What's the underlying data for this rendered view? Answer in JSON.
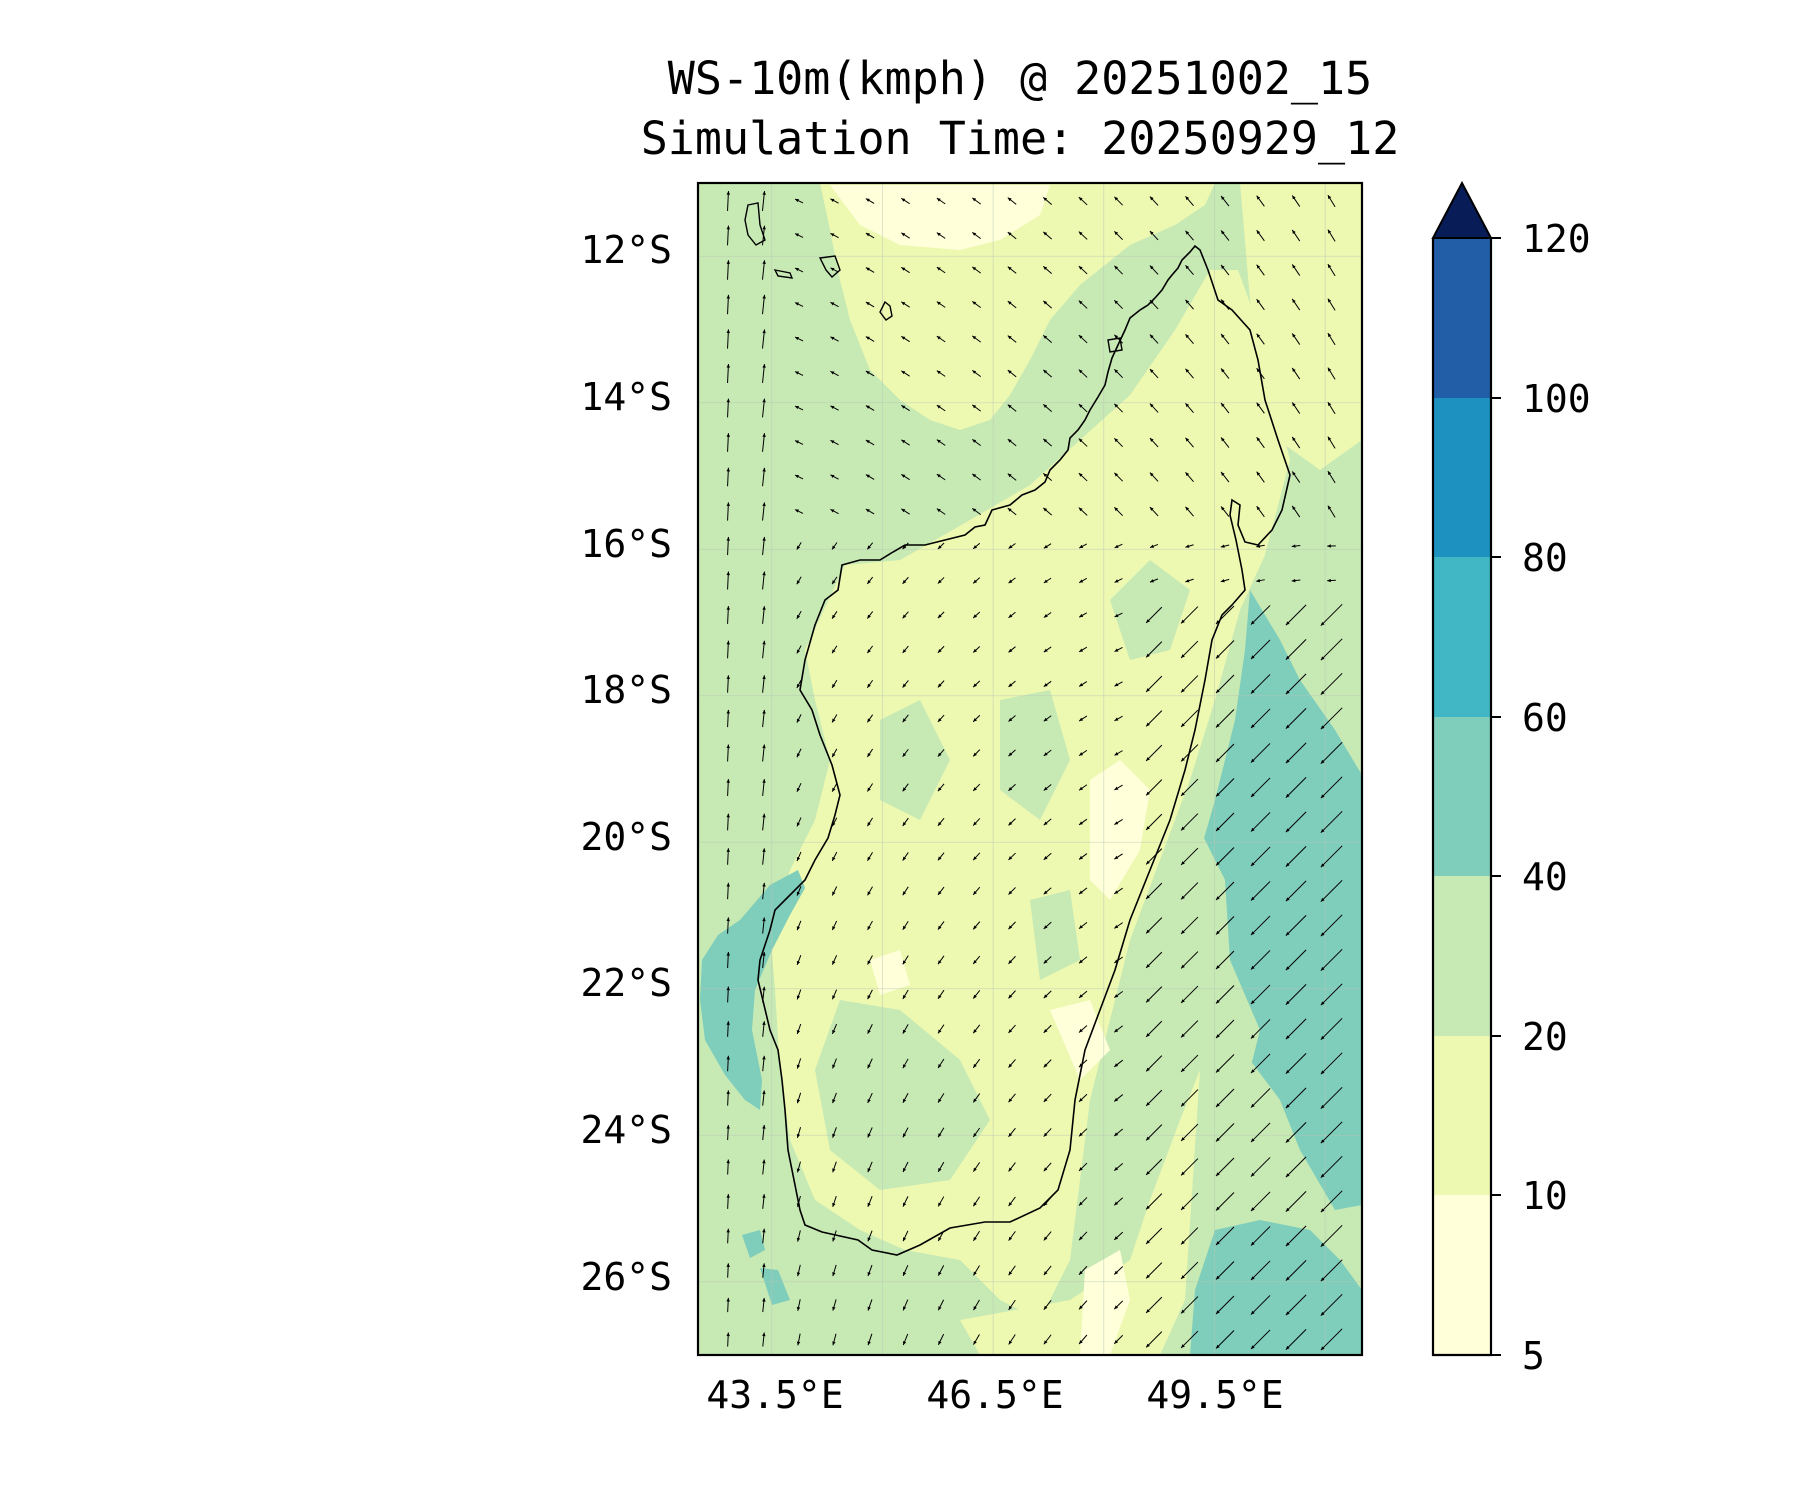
{
  "title": "WS-10m(kmph) @ 20251002_15",
  "subtitle": "Simulation Time: 20250929_12",
  "map": {
    "region": "Madagascar",
    "lon_range": [
      42.5,
      51.5
    ],
    "lat_range": [
      -27,
      -11
    ],
    "lat_ticks": [
      "12°S",
      "14°S",
      "16°S",
      "18°S",
      "20°S",
      "22°S",
      "24°S",
      "26°S"
    ],
    "lon_ticks": [
      "43.5°E",
      "46.5°E",
      "49.5°E"
    ],
    "gridlines": true
  },
  "colorbar": {
    "levels": [
      "5",
      "10",
      "20",
      "40",
      "60",
      "80",
      "100",
      "120"
    ],
    "colors": [
      "#ffffd9",
      "#edf8b1",
      "#c7e9b4",
      "#7fcdbb",
      "#41b6c4",
      "#1d91c0",
      "#225ea8",
      "#0c2c84"
    ],
    "extend": "max",
    "extend_color": "#081d58"
  },
  "fill_colors": {
    "lowest": "#ffffd9",
    "low": "#edf8b1",
    "mid": "#c7e9b4",
    "high": "#7fcdbb"
  },
  "wind_field": {
    "description_units": "kmph",
    "west_coast_direction": "north",
    "east_coast_direction": "southwest"
  }
}
